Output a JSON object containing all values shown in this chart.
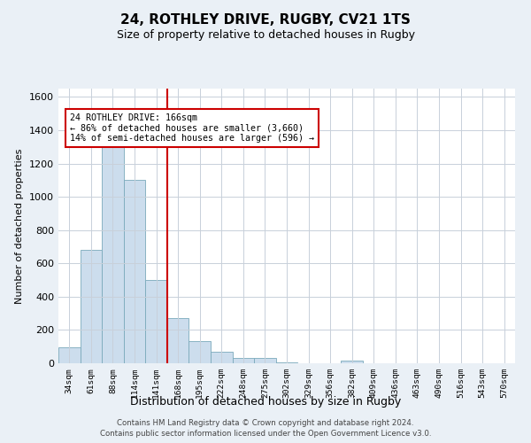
{
  "title1": "24, ROTHLEY DRIVE, RUGBY, CV21 1TS",
  "title2": "Size of property relative to detached houses in Rugby",
  "xlabel": "Distribution of detached houses by size in Rugby",
  "ylabel": "Number of detached properties",
  "categories": [
    "34sqm",
    "61sqm",
    "88sqm",
    "114sqm",
    "141sqm",
    "168sqm",
    "195sqm",
    "222sqm",
    "248sqm",
    "275sqm",
    "302sqm",
    "329sqm",
    "356sqm",
    "382sqm",
    "409sqm",
    "436sqm",
    "463sqm",
    "490sqm",
    "516sqm",
    "543sqm",
    "570sqm"
  ],
  "values": [
    95,
    680,
    1340,
    1100,
    500,
    270,
    135,
    70,
    30,
    30,
    5,
    0,
    0,
    15,
    0,
    0,
    0,
    0,
    0,
    0,
    0
  ],
  "bar_color": "#ccdded",
  "bar_edge_color": "#7aaabb",
  "vline_index": 5,
  "vline_color": "#cc0000",
  "annotation_text": "24 ROTHLEY DRIVE: 166sqm\n← 86% of detached houses are smaller (3,660)\n14% of semi-detached houses are larger (596) →",
  "annotation_box_color": "#ffffff",
  "annotation_box_edge": "#cc0000",
  "ylim": [
    0,
    1650
  ],
  "yticks": [
    0,
    200,
    400,
    600,
    800,
    1000,
    1200,
    1400,
    1600
  ],
  "footer1": "Contains HM Land Registry data © Crown copyright and database right 2024.",
  "footer2": "Contains public sector information licensed under the Open Government Licence v3.0.",
  "background_color": "#eaf0f6",
  "plot_bg_color": "#ffffff",
  "grid_color": "#c8d0da"
}
